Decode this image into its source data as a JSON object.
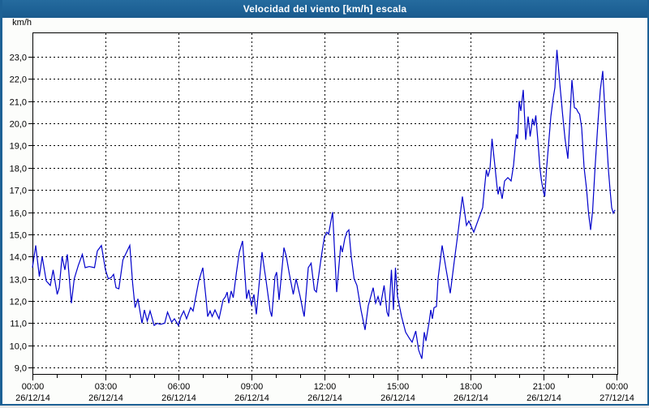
{
  "title_bar": {
    "title": "Velocidad del viento [km/h] escala"
  },
  "chart": {
    "unit_label": "km/h",
    "colors": {
      "line": "#0000cc",
      "frame": "#1d6195",
      "plot_background": "#ffffff",
      "grid": "#000000",
      "text": "#000000"
    },
    "y_axis": {
      "ticks": [
        {
          "value": 23,
          "label": "23,0"
        },
        {
          "value": 22,
          "label": "22,0"
        },
        {
          "value": 21,
          "label": "21,0"
        },
        {
          "value": 20,
          "label": "20,0"
        },
        {
          "value": 19,
          "label": "19,0"
        },
        {
          "value": 18,
          "label": "18,0"
        },
        {
          "value": 17,
          "label": "17,0"
        },
        {
          "value": 16,
          "label": "16,0"
        },
        {
          "value": 15,
          "label": "15,0"
        },
        {
          "value": 14,
          "label": "14,0"
        },
        {
          "value": 13,
          "label": "13,0"
        },
        {
          "value": 12,
          "label": "12,0"
        },
        {
          "value": 11,
          "label": "11,0"
        },
        {
          "value": 10,
          "label": "10,0"
        },
        {
          "value": 9,
          "label": "9,0"
        }
      ]
    },
    "x_axis": {
      "minor_tick_interval_hours": 1,
      "ticks": [
        {
          "hour": 0,
          "time": "00:00",
          "date": "26/12/14"
        },
        {
          "hour": 3,
          "time": "03:00",
          "date": "26/12/14"
        },
        {
          "hour": 6,
          "time": "06:00",
          "date": "26/12/14"
        },
        {
          "hour": 9,
          "time": "09:00",
          "date": "26/12/14"
        },
        {
          "hour": 12,
          "time": "12:00",
          "date": "26/12/14"
        },
        {
          "hour": 15,
          "time": "15:00",
          "date": "26/12/14"
        },
        {
          "hour": 18,
          "time": "18:00",
          "date": "26/12/14"
        },
        {
          "hour": 21,
          "time": "21:00",
          "date": "26/12/14"
        },
        {
          "hour": 24,
          "time": "00:00",
          "date": "27/12/14"
        }
      ]
    }
  },
  "chart_data": {
    "type": "line",
    "title": "Velocidad del viento [km/h] escala",
    "ylabel": "km/h",
    "ylim": [
      9,
      23
    ],
    "xlim_hours": [
      0,
      24
    ],
    "grid": "dashed, every 1 km/h horizontal, every 3 h vertical",
    "legend": "none",
    "x_unit": "minutes since 26/12/14 00:00",
    "series": [
      {
        "name": "Velocidad del viento [km/h]",
        "color": "#0000cc",
        "points": [
          [
            0,
            13.5
          ],
          [
            8,
            14.5
          ],
          [
            17,
            13.1
          ],
          [
            24,
            14.0
          ],
          [
            34,
            12.9
          ],
          [
            44,
            12.7
          ],
          [
            51,
            13.4
          ],
          [
            61,
            12.3
          ],
          [
            66,
            12.6
          ],
          [
            73,
            14.0
          ],
          [
            80,
            13.4
          ],
          [
            86,
            14.1
          ],
          [
            96,
            11.9
          ],
          [
            103,
            13.0
          ],
          [
            113,
            13.6
          ],
          [
            123,
            14.1
          ],
          [
            130,
            13.5
          ],
          [
            140,
            13.55
          ],
          [
            153,
            13.5
          ],
          [
            160,
            14.25
          ],
          [
            170,
            14.5
          ],
          [
            180,
            13.4
          ],
          [
            187,
            13.0
          ],
          [
            194,
            13.05
          ],
          [
            200,
            13.2
          ],
          [
            206,
            12.6
          ],
          [
            213,
            12.55
          ],
          [
            223,
            13.85
          ],
          [
            240,
            14.5
          ],
          [
            247,
            12.8
          ],
          [
            253,
            11.7
          ],
          [
            260,
            12.1
          ],
          [
            270,
            11.0
          ],
          [
            276,
            11.6
          ],
          [
            283,
            11.1
          ],
          [
            290,
            11.55
          ],
          [
            300,
            10.9
          ],
          [
            308,
            11.0
          ],
          [
            315,
            10.95
          ],
          [
            326,
            11.0
          ],
          [
            333,
            11.5
          ],
          [
            343,
            11.05
          ],
          [
            350,
            11.2
          ],
          [
            360,
            10.9
          ],
          [
            366,
            11.3
          ],
          [
            373,
            11.55
          ],
          [
            380,
            11.2
          ],
          [
            390,
            11.7
          ],
          [
            396,
            11.55
          ],
          [
            410,
            12.9
          ],
          [
            420,
            13.5
          ],
          [
            428,
            12.1
          ],
          [
            432,
            11.3
          ],
          [
            438,
            11.55
          ],
          [
            443,
            11.3
          ],
          [
            450,
            11.6
          ],
          [
            460,
            11.2
          ],
          [
            470,
            12.05
          ],
          [
            476,
            12.2
          ],
          [
            480,
            12.4
          ],
          [
            484,
            11.9
          ],
          [
            490,
            12.45
          ],
          [
            495,
            12.15
          ],
          [
            503,
            13.3
          ],
          [
            510,
            14.2
          ],
          [
            518,
            14.7
          ],
          [
            528,
            12.1
          ],
          [
            533,
            12.5
          ],
          [
            540,
            11.8
          ],
          [
            546,
            12.3
          ],
          [
            552,
            11.4
          ],
          [
            560,
            13.0
          ],
          [
            566,
            14.2
          ],
          [
            572,
            13.4
          ],
          [
            575,
            13.05
          ],
          [
            586,
            11.55
          ],
          [
            590,
            11.3
          ],
          [
            598,
            13.1
          ],
          [
            602,
            13.3
          ],
          [
            608,
            12.05
          ],
          [
            615,
            13.4
          ],
          [
            620,
            14.4
          ],
          [
            626,
            14.0
          ],
          [
            633,
            13.25
          ],
          [
            643,
            12.3
          ],
          [
            650,
            13.0
          ],
          [
            660,
            12.2
          ],
          [
            667,
            11.55
          ],
          [
            670,
            11.3
          ],
          [
            680,
            13.5
          ],
          [
            687,
            13.7
          ],
          [
            695,
            12.5
          ],
          [
            700,
            12.4
          ],
          [
            713,
            14.1
          ],
          [
            720,
            14.9
          ],
          [
            726,
            15.1
          ],
          [
            730,
            15.0
          ],
          [
            740,
            16.0
          ],
          [
            750,
            12.4
          ],
          [
            760,
            14.5
          ],
          [
            764,
            14.2
          ],
          [
            770,
            14.8
          ],
          [
            775,
            15.1
          ],
          [
            780,
            15.2
          ],
          [
            786,
            14.0
          ],
          [
            793,
            13.0
          ],
          [
            800,
            12.7
          ],
          [
            810,
            11.6
          ],
          [
            820,
            10.7
          ],
          [
            828,
            11.8
          ],
          [
            840,
            12.6
          ],
          [
            846,
            11.9
          ],
          [
            852,
            12.2
          ],
          [
            858,
            11.8
          ],
          [
            867,
            12.7
          ],
          [
            874,
            11.5
          ],
          [
            878,
            11.3
          ],
          [
            885,
            13.4
          ],
          [
            890,
            11.6
          ],
          [
            895,
            13.5
          ],
          [
            900,
            12.2
          ],
          [
            910,
            11.3
          ],
          [
            920,
            10.6
          ],
          [
            930,
            10.3
          ],
          [
            936,
            10.15
          ],
          [
            945,
            10.65
          ],
          [
            952,
            9.8
          ],
          [
            960,
            9.4
          ],
          [
            966,
            10.6
          ],
          [
            970,
            10.2
          ],
          [
            978,
            11.05
          ],
          [
            982,
            11.6
          ],
          [
            986,
            11.2
          ],
          [
            990,
            11.7
          ],
          [
            996,
            11.75
          ],
          [
            1000,
            13.0
          ],
          [
            1010,
            14.5
          ],
          [
            1020,
            13.4
          ],
          [
            1030,
            12.35
          ],
          [
            1040,
            13.8
          ],
          [
            1050,
            15.2
          ],
          [
            1060,
            16.7
          ],
          [
            1070,
            15.4
          ],
          [
            1076,
            15.6
          ],
          [
            1088,
            15.1
          ],
          [
            1100,
            15.7
          ],
          [
            1110,
            16.2
          ],
          [
            1114,
            17.0
          ],
          [
            1119,
            17.9
          ],
          [
            1123,
            17.6
          ],
          [
            1128,
            17.95
          ],
          [
            1133,
            19.3
          ],
          [
            1140,
            18.1
          ],
          [
            1145,
            17.2
          ],
          [
            1148,
            16.8
          ],
          [
            1152,
            17.15
          ],
          [
            1158,
            16.6
          ],
          [
            1164,
            17.4
          ],
          [
            1172,
            17.55
          ],
          [
            1180,
            17.4
          ],
          [
            1186,
            18.1
          ],
          [
            1190,
            18.9
          ],
          [
            1193,
            19.5
          ],
          [
            1196,
            19.3
          ],
          [
            1200,
            21.0
          ],
          [
            1204,
            20.55
          ],
          [
            1210,
            21.5
          ],
          [
            1216,
            19.25
          ],
          [
            1222,
            20.3
          ],
          [
            1227,
            19.4
          ],
          [
            1233,
            20.2
          ],
          [
            1237,
            19.9
          ],
          [
            1241,
            20.35
          ],
          [
            1247,
            19.0
          ],
          [
            1251,
            18.0
          ],
          [
            1255,
            17.4
          ],
          [
            1260,
            16.9
          ],
          [
            1263,
            16.7
          ],
          [
            1267,
            17.85
          ],
          [
            1274,
            19.4
          ],
          [
            1278,
            20.3
          ],
          [
            1284,
            21.15
          ],
          [
            1288,
            21.6
          ],
          [
            1293,
            23.3
          ],
          [
            1300,
            21.8
          ],
          [
            1307,
            20.4
          ],
          [
            1313,
            19.3
          ],
          [
            1320,
            18.4
          ],
          [
            1330,
            21.95
          ],
          [
            1336,
            20.7
          ],
          [
            1341,
            20.65
          ],
          [
            1345,
            20.5
          ],
          [
            1349,
            20.4
          ],
          [
            1354,
            19.8
          ],
          [
            1360,
            18.0
          ],
          [
            1366,
            17.05
          ],
          [
            1371,
            15.95
          ],
          [
            1376,
            15.2
          ],
          [
            1381,
            16.05
          ],
          [
            1387,
            18.0
          ],
          [
            1394,
            20.0
          ],
          [
            1400,
            21.5
          ],
          [
            1406,
            22.35
          ],
          [
            1413,
            20.0
          ],
          [
            1420,
            17.9
          ],
          [
            1424,
            17.0
          ],
          [
            1428,
            16.2
          ],
          [
            1432,
            15.95
          ],
          [
            1436,
            16.1
          ]
        ]
      }
    ]
  }
}
